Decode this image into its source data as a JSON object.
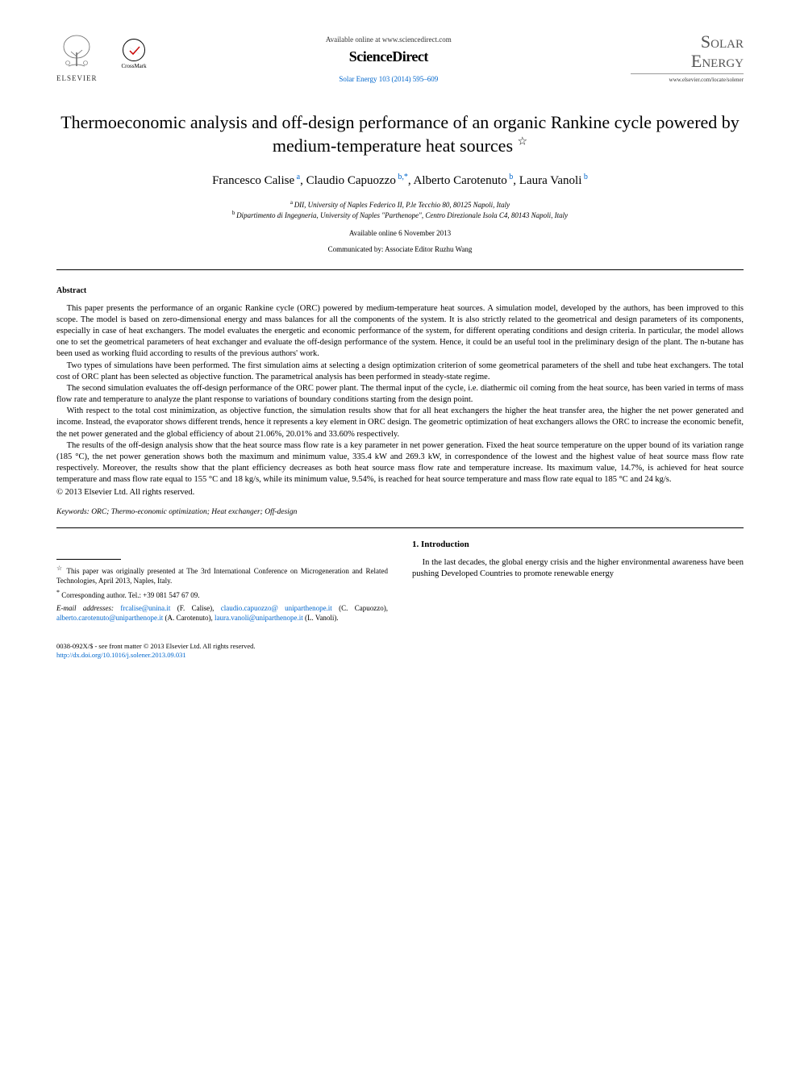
{
  "header": {
    "elsevier_label": "ELSEVIER",
    "crossmark_label": "CrossMark",
    "available_text": "Available online at www.sciencedirect.com",
    "sciencedirect": "ScienceDirect",
    "citation": "Solar Energy 103 (2014) 595–609",
    "journal_title_1": "Solar",
    "journal_title_2": "Energy",
    "journal_url": "www.elsevier.com/locate/solener"
  },
  "article": {
    "title": "Thermoeconomic analysis and off-design performance of an organic Rankine cycle powered by medium-temperature heat sources",
    "star": "☆",
    "authors": [
      {
        "name": "Francesco Calise",
        "sup": "a"
      },
      {
        "name": "Claudio Capuozzo",
        "sup": "b,*"
      },
      {
        "name": "Alberto Carotenuto",
        "sup": "b"
      },
      {
        "name": "Laura Vanoli",
        "sup": "b"
      }
    ],
    "affiliations": [
      {
        "sup": "a",
        "text": "DII, University of Naples Federico II, P.le Tecchio 80, 80125 Napoli, Italy"
      },
      {
        "sup": "b",
        "text": "Dipartimento di Ingegneria, University of Naples \"Parthenope\", Centro Direzionale Isola C4, 80143 Napoli, Italy"
      }
    ],
    "date": "Available online 6 November 2013",
    "communicated": "Communicated by: Associate Editor Ruzhu Wang"
  },
  "abstract": {
    "heading": "Abstract",
    "paragraphs": [
      "This paper presents the performance of an organic Rankine cycle (ORC) powered by medium-temperature heat sources. A simulation model, developed by the authors, has been improved to this scope. The model is based on zero-dimensional energy and mass balances for all the components of the system. It is also strictly related to the geometrical and design parameters of its components, especially in case of heat exchangers. The model evaluates the energetic and economic performance of the system, for different operating conditions and design criteria. In particular, the model allows one to set the geometrical parameters of heat exchanger and evaluate the off-design performance of the system. Hence, it could be an useful tool in the preliminary design of the plant. The n-butane has been used as working fluid according to results of the previous authors' work.",
      "Two types of simulations have been performed. The first simulation aims at selecting a design optimization criterion of some geometrical parameters of the shell and tube heat exchangers. The total cost of ORC plant has been selected as objective function. The parametrical analysis has been performed in steady-state regime.",
      "The second simulation evaluates the off-design performance of the ORC power plant. The thermal input of the cycle, i.e. diathermic oil coming from the heat source, has been varied in terms of mass flow rate and temperature to analyze the plant response to variations of boundary conditions starting from the design point.",
      "With respect to the total cost minimization, as objective function, the simulation results show that for all heat exchangers the higher the heat transfer area, the higher the net power generated and income. Instead, the evaporator shows different trends, hence it represents a key element in ORC design. The geometric optimization of heat exchangers allows the ORC to increase the economic benefit, the net power generated and the global efficiency of about 21.06%, 20.01% and 33.60% respectively.",
      "The results of the off-design analysis show that the heat source mass flow rate is a key parameter in net power generation. Fixed the heat source temperature on the upper bound of its variation range (185 °C), the net power generation shows both the maximum and minimum value, 335.4 kW and 269.3 kW, in correspondence of the lowest and the highest value of heat source mass flow rate respectively. Moreover, the results show that the plant efficiency decreases as both heat source mass flow rate and temperature increase. Its maximum value, 14.7%, is achieved for heat source temperature and mass flow rate equal to 155 °C and 18 kg/s, while its minimum value, 9.54%, is reached for heat source temperature and mass flow rate equal to 185 °C and 24 kg/s."
    ],
    "copyright": "© 2013 Elsevier Ltd. All rights reserved."
  },
  "keywords": {
    "label": "Keywords:",
    "text": "ORC; Thermo-economic optimization; Heat exchanger; Off-design"
  },
  "footnotes": {
    "f1_sup": "☆",
    "f1_text": "This paper was originally presented at The 3rd International Conference on Microgeneration and Related Technologies, April 2013, Naples, Italy.",
    "f2_sup": "*",
    "f2_text": "Corresponding author. Tel.: +39 081 547 67 09.",
    "emails_label": "E-mail addresses:",
    "emails": [
      {
        "addr": "frcalise@unina.it",
        "name": "(F. Calise)"
      },
      {
        "addr": "claudio.capuozzo@ uniparthenope.it",
        "name": "(C. Capuozzo)"
      },
      {
        "addr": "alberto.carotenuto@uniparthenope.it",
        "name": "(A. Carotenuto)"
      },
      {
        "addr": "laura.vanoli@uniparthenope.it",
        "name": "(L. Vanoli)"
      }
    ]
  },
  "intro": {
    "heading": "1. Introduction",
    "text": "In the last decades, the global energy crisis and the higher environmental awareness have been pushing Developed Countries to promote renewable energy"
  },
  "bottom": {
    "matter": "0038-092X/$ - see front matter © 2013 Elsevier Ltd. All rights reserved.",
    "doi": "http://dx.doi.org/10.1016/j.solener.2013.09.031"
  },
  "colors": {
    "link": "#0066cc",
    "text": "#000000",
    "gray": "#555555"
  }
}
